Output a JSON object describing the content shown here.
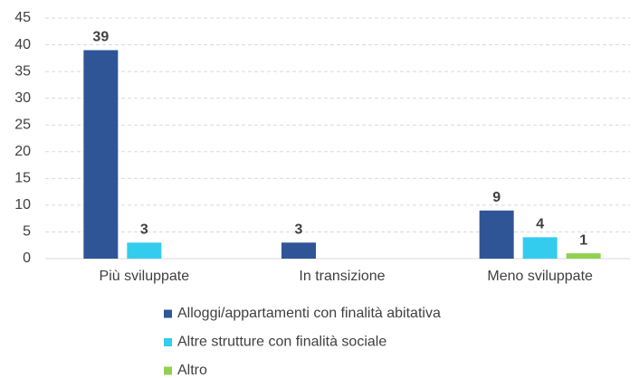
{
  "chart_data": {
    "type": "bar",
    "categories": [
      "Più sviluppate",
      "In transizione",
      "Meno sviluppate"
    ],
    "series": [
      {
        "name": "Alloggi/appartamenti con finalità abitativa",
        "color": "#2f5597",
        "values": [
          39,
          3,
          9
        ]
      },
      {
        "name": "Altre strutture con finalità sociale",
        "color": "#33ccee",
        "values": [
          3,
          null,
          4
        ]
      },
      {
        "name": "Altro",
        "color": "#92d050",
        "values": [
          null,
          null,
          1
        ]
      }
    ],
    "ylim": [
      0,
      45
    ],
    "yticks": [
      0,
      5,
      10,
      15,
      20,
      25,
      30,
      35,
      40,
      45
    ],
    "grid": true,
    "legend": "bottom"
  }
}
